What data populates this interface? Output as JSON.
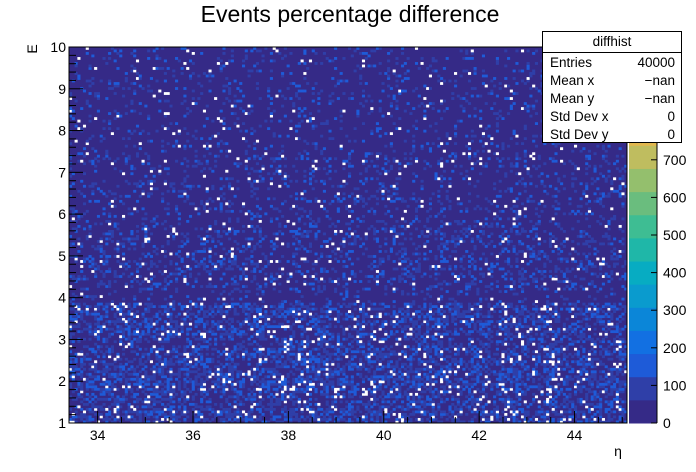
{
  "chart_data": {
    "type": "heatmap",
    "title": "Events percentage difference",
    "xlabel": "η",
    "ylabel": "E",
    "xlim": [
      33.4,
      45.1
    ],
    "ylim": [
      1,
      10
    ],
    "x_ticks": [
      "34",
      "36",
      "38",
      "40",
      "42",
      "44"
    ],
    "y_ticks": [
      "1",
      "2",
      "3",
      "4",
      "5",
      "6",
      "7",
      "8",
      "9",
      "10"
    ],
    "z_ticks": [
      "0",
      "100",
      "200",
      "300",
      "400",
      "500",
      "600",
      "700"
    ],
    "zlim": [
      0,
      1000
    ],
    "bands": [
      {
        "e_range": [
          1.0,
          1.3
        ],
        "level": 0.45
      },
      {
        "e_range": [
          1.3,
          1.8
        ],
        "level": 0.35
      },
      {
        "e_range": [
          1.8,
          2.3
        ],
        "level": 0.45
      },
      {
        "e_range": [
          2.3,
          2.8
        ],
        "level": 0.4
      },
      {
        "e_range": [
          2.8,
          3.1
        ],
        "level": 0.3
      },
      {
        "e_range": [
          3.1,
          3.9
        ],
        "level": 0.4
      },
      {
        "e_range": [
          3.9,
          4.2
        ],
        "level": 0.1
      },
      {
        "e_range": [
          4.2,
          5.6
        ],
        "level": 0.2
      },
      {
        "e_range": [
          5.6,
          7.5
        ],
        "level": 0.14
      },
      {
        "e_range": [
          7.5,
          10.0
        ],
        "level": 0.1
      }
    ],
    "palette": [
      "#352a87",
      "#2f3fa8",
      "#1e5bd8",
      "#1270e2",
      "#0b86d8",
      "#0a9bce",
      "#07acc2",
      "#1fb7a8",
      "#3ebd93",
      "#6abd7e",
      "#94bf6d",
      "#bfbd5f",
      "#e2b74e"
    ]
  },
  "stats": {
    "name": "diffhist",
    "rows": [
      {
        "label": "Entries",
        "value": "40000"
      },
      {
        "label": "Mean x",
        "value": "−nan"
      },
      {
        "label": "Mean y",
        "value": "−nan"
      },
      {
        "label": "Std Dev x",
        "value": "0"
      },
      {
        "label": "Std Dev y",
        "value": "0"
      }
    ]
  }
}
